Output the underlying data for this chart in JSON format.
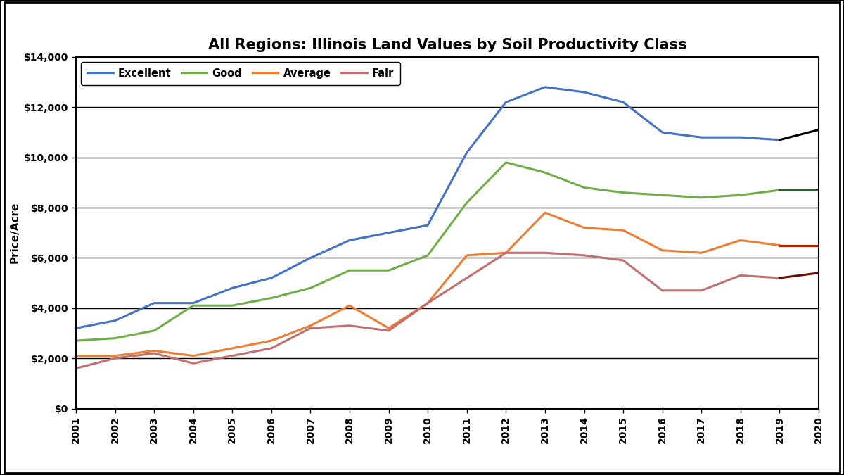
{
  "title": "All Regions: Illinois Land Values by Soil Productivity Class",
  "ylabel": "Price/Acre",
  "years": [
    2001,
    2002,
    2003,
    2004,
    2005,
    2006,
    2007,
    2008,
    2009,
    2010,
    2011,
    2012,
    2013,
    2014,
    2015,
    2016,
    2017,
    2018,
    2019,
    2020
  ],
  "excellent": [
    3200,
    3500,
    4200,
    4200,
    4800,
    5200,
    6000,
    6700,
    7000,
    7300,
    10200,
    12200,
    12800,
    12600,
    12200,
    11000,
    10800,
    10800,
    10700,
    11100
  ],
  "good": [
    2700,
    2800,
    3100,
    4100,
    4100,
    4400,
    4800,
    5500,
    5500,
    6100,
    8200,
    9800,
    9400,
    8800,
    8600,
    8500,
    8400,
    8500,
    8700,
    8700
  ],
  "average": [
    2100,
    2100,
    2300,
    2100,
    2400,
    2700,
    3300,
    4100,
    3200,
    4200,
    6100,
    6200,
    7800,
    7200,
    7100,
    6300,
    6200,
    6700,
    6500,
    6500
  ],
  "fair": [
    1600,
    2000,
    2200,
    1800,
    2100,
    2400,
    3200,
    3300,
    3100,
    4200,
    5200,
    6200,
    6200,
    6100,
    5900,
    4700,
    4700,
    5300,
    5200,
    5400
  ],
  "excellent_2020_color": "#000000",
  "good_2020_color": "#1a6b1a",
  "average_2020_color": "#cc2200",
  "fair_2020_color": "#6b0a0a",
  "excellent_color": "#4472c4",
  "good_color": "#70ad47",
  "average_color": "#ed7d31",
  "fair_color": "#c07070",
  "ylim": [
    0,
    14000
  ],
  "yticks": [
    0,
    2000,
    4000,
    6000,
    8000,
    10000,
    12000,
    14000
  ],
  "legend_labels": [
    "Excellent",
    "Good",
    "Average",
    "Fair"
  ],
  "background_color": "#ffffff",
  "outer_border_color": "#000000",
  "title_fontsize": 15,
  "axis_label_fontsize": 11,
  "tick_fontsize": 10
}
